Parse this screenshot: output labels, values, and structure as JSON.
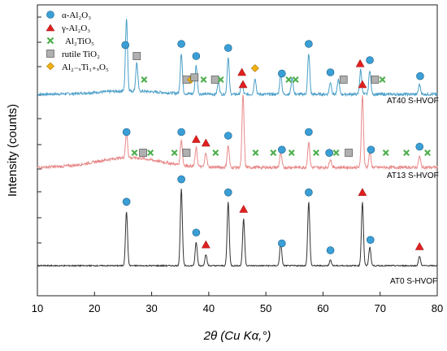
{
  "chart_data": {
    "type": "line",
    "xlabel": "2θ (Cu Kα,°)",
    "ylabel": "Intensity (counts)",
    "xlim": [
      10,
      80
    ],
    "x_ticks": [
      10,
      20,
      30,
      40,
      50,
      60,
      70,
      80
    ],
    "grid": false,
    "legend_position": "top-left",
    "legend": [
      {
        "label": "α-Al2O3",
        "marker": "circle",
        "color": "#3a9fd6"
      },
      {
        "label": "γ-Al2O3",
        "marker": "triangle",
        "color": "#e02020"
      },
      {
        "label": "Al2TiO5",
        "marker": "cross",
        "color": "#4cae4c"
      },
      {
        "label": "rutile TiO2",
        "marker": "square",
        "color": "#b0b0b0"
      },
      {
        "label": "Al2-xTi1+xO5",
        "marker": "diamond",
        "color": "#f2b10e"
      }
    ],
    "series": [
      {
        "name": "AT40 S-HVOF",
        "color": "#4a9fc8",
        "peaks": [
          [
            25.6,
            0.9
          ],
          [
            27.4,
            0.35
          ],
          [
            35.2,
            0.5
          ],
          [
            37.8,
            0.35
          ],
          [
            41.7,
            0.15
          ],
          [
            43.4,
            0.45
          ],
          [
            45.8,
            0.15
          ],
          [
            48.1,
            0.2
          ],
          [
            52.6,
            0.25
          ],
          [
            54.6,
            0.2
          ],
          [
            57.5,
            0.5
          ],
          [
            61.3,
            0.15
          ],
          [
            62.7,
            0.18
          ],
          [
            66.6,
            0.3
          ],
          [
            68.2,
            0.3
          ],
          [
            76.9,
            0.12
          ]
        ],
        "markers": [
          {
            "x": 25.4,
            "type": "circle"
          },
          {
            "x": 27.4,
            "type": "square"
          },
          {
            "x": 28.7,
            "type": "cross"
          },
          {
            "x": 35.2,
            "type": "circle"
          },
          {
            "x": 36.1,
            "type": "square"
          },
          {
            "x": 36.9,
            "type": "diamond"
          },
          {
            "x": 37.5,
            "type": "square"
          },
          {
            "x": 37.8,
            "type": "circle"
          },
          {
            "x": 39.1,
            "type": "cross"
          },
          {
            "x": 41.1,
            "type": "square"
          },
          {
            "x": 42.1,
            "type": "cross"
          },
          {
            "x": 43.4,
            "type": "circle"
          },
          {
            "x": 45.8,
            "type": "triangle"
          },
          {
            "x": 48.1,
            "type": "diamond"
          },
          {
            "x": 52.8,
            "type": "circle"
          },
          {
            "x": 54.0,
            "type": "cross"
          },
          {
            "x": 55.2,
            "type": "cross"
          },
          {
            "x": 57.5,
            "type": "circle"
          },
          {
            "x": 61.3,
            "type": "circle"
          },
          {
            "x": 63.6,
            "type": "square"
          },
          {
            "x": 66.5,
            "type": "triangle"
          },
          {
            "x": 68.2,
            "type": "circle"
          },
          {
            "x": 69.1,
            "type": "square"
          },
          {
            "x": 70.4,
            "type": "cross"
          },
          {
            "x": 77.0,
            "type": "circle"
          }
        ]
      },
      {
        "name": "AT13 S-HVOF",
        "color": "#e88a8a",
        "peaks": [
          [
            25.6,
            0.35
          ],
          [
            35.2,
            0.35
          ],
          [
            37.8,
            0.25
          ],
          [
            39.5,
            0.2
          ],
          [
            43.4,
            0.3
          ],
          [
            46.0,
            1.0
          ],
          [
            52.6,
            0.2
          ],
          [
            57.5,
            0.35
          ],
          [
            61.3,
            0.12
          ],
          [
            66.9,
            1.0
          ],
          [
            68.2,
            0.2
          ],
          [
            76.9,
            0.15
          ]
        ],
        "markers": [
          {
            "x": 25.6,
            "type": "circle"
          },
          {
            "x": 27.0,
            "type": "cross"
          },
          {
            "x": 28.5,
            "type": "square"
          },
          {
            "x": 29.8,
            "type": "cross"
          },
          {
            "x": 34.0,
            "type": "cross"
          },
          {
            "x": 35.2,
            "type": "circle"
          },
          {
            "x": 36.1,
            "type": "square"
          },
          {
            "x": 37.8,
            "type": "triangle"
          },
          {
            "x": 39.5,
            "type": "triangle"
          },
          {
            "x": 41.2,
            "type": "cross"
          },
          {
            "x": 43.4,
            "type": "circle"
          },
          {
            "x": 46.0,
            "type": "triangle"
          },
          {
            "x": 48.2,
            "type": "cross"
          },
          {
            "x": 51.3,
            "type": "cross"
          },
          {
            "x": 52.8,
            "type": "circle"
          },
          {
            "x": 54.5,
            "type": "cross"
          },
          {
            "x": 57.5,
            "type": "circle"
          },
          {
            "x": 58.8,
            "type": "cross"
          },
          {
            "x": 61.1,
            "type": "circle"
          },
          {
            "x": 62.3,
            "type": "cross"
          },
          {
            "x": 64.5,
            "type": "square"
          },
          {
            "x": 66.9,
            "type": "triangle"
          },
          {
            "x": 68.4,
            "type": "circle"
          },
          {
            "x": 71.0,
            "type": "cross"
          },
          {
            "x": 74.6,
            "type": "cross"
          },
          {
            "x": 76.9,
            "type": "circle"
          },
          {
            "x": 78.3,
            "type": "cross"
          }
        ]
      },
      {
        "name": "AT0 S-HVOF",
        "color": "#333333",
        "peaks": [
          [
            25.6,
            0.58
          ],
          [
            35.2,
            0.82
          ],
          [
            37.8,
            0.25
          ],
          [
            39.5,
            0.12
          ],
          [
            43.4,
            0.68
          ],
          [
            46.1,
            0.5
          ],
          [
            52.6,
            0.25
          ],
          [
            57.5,
            0.68
          ],
          [
            61.3,
            0.06
          ],
          [
            66.9,
            0.68
          ],
          [
            68.2,
            0.2
          ],
          [
            76.9,
            0.1
          ]
        ],
        "markers": [
          {
            "x": 25.6,
            "type": "circle"
          },
          {
            "x": 35.2,
            "type": "circle"
          },
          {
            "x": 37.8,
            "type": "circle"
          },
          {
            "x": 39.5,
            "type": "triangle"
          },
          {
            "x": 43.4,
            "type": "circle"
          },
          {
            "x": 46.1,
            "type": "triangle"
          },
          {
            "x": 52.8,
            "type": "circle"
          },
          {
            "x": 57.5,
            "type": "circle"
          },
          {
            "x": 61.3,
            "type": "circle"
          },
          {
            "x": 66.9,
            "type": "triangle"
          },
          {
            "x": 68.3,
            "type": "circle"
          },
          {
            "x": 76.9,
            "type": "triangle"
          }
        ]
      }
    ]
  },
  "legend_labels": {
    "alpha": "α-Al₂O₃",
    "gamma": "γ-Al₂O₃",
    "al2tio5": "Al₂TiO₅",
    "rutile": "rutile TiO₂",
    "alti": "Al₂₋ₓTi₁₊ₓO₅"
  },
  "sample_labels": {
    "at40": "AT40 S-HVOF",
    "at13": "AT13 S-HVOF",
    "at0": "AT0 S-HVOF"
  }
}
